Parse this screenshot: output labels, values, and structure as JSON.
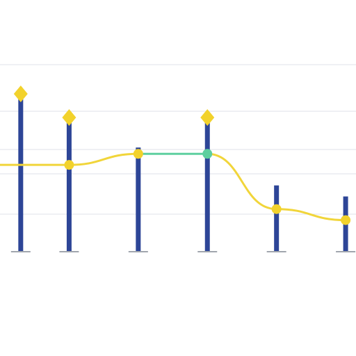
{
  "title": "",
  "header_labels": [
    "",
    "",
    ""
  ],
  "captions": {
    "left": "",
    "right": ""
  },
  "colors": {
    "bar": "#2d4597",
    "line_primary": "#f1d53a",
    "line_secondary": "#5ecf9f",
    "marker": "#f2d22c",
    "grid": "#dfe2e8",
    "baseline": "#a0a5ad"
  },
  "chart_data": {
    "type": "bar",
    "title": "",
    "xlabel": "",
    "ylabel": "",
    "grid": true,
    "legend": "none",
    "ylim": [
      0,
      100
    ],
    "x": [
      0.3,
      1,
      2,
      3,
      4,
      5
    ],
    "series": [
      {
        "kind": "bar",
        "values": [
          100,
          85,
          66,
          85,
          42,
          35
        ],
        "markers": [
          true,
          true,
          false,
          true,
          false,
          false
        ]
      },
      {
        "kind": "line",
        "x": [
          0,
          1,
          2,
          3,
          4,
          5
        ],
        "values": [
          55,
          55,
          62,
          62,
          27,
          20
        ],
        "segment_colors": [
          "primary",
          "primary",
          "secondary",
          "primary",
          "primary"
        ]
      }
    ]
  }
}
